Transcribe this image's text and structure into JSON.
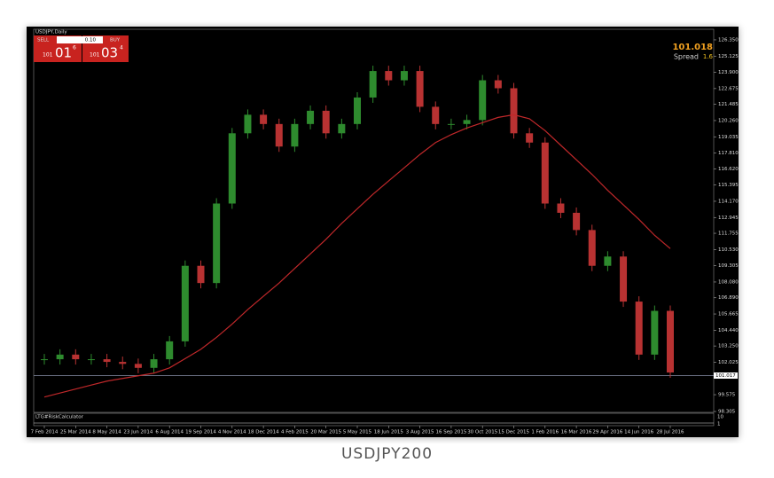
{
  "chart_data": {
    "type": "candlestick",
    "symbol": "USDJPY,Daily",
    "sell_label": "SELL",
    "buy_label": "BUY",
    "lot": "0.10",
    "sell_big": "101",
    "sell_mid": "01",
    "sell_small": "6",
    "buy_big": "101",
    "buy_mid": "03",
    "buy_small": "4",
    "quote": 101.018,
    "spread_label": "Spread",
    "spread": 1.6,
    "current_price": 101.017,
    "indicator_label": "LTG#RiskCalculator",
    "indicator_ticks": [
      "10",
      "1"
    ],
    "caption": "USDJPY200",
    "categories": [
      "7 Feb 2014",
      null,
      "25 Mar 2014",
      null,
      "8 May 2014",
      null,
      "23 Jun 2014",
      null,
      "6 Aug 2014",
      null,
      "19 Sep 2014",
      null,
      "4 Nov 2014",
      null,
      "18 Dec 2014",
      null,
      "4 Feb 2015",
      null,
      "20 Mar 2015",
      null,
      "5 May 2015",
      null,
      "18 Jun 2015",
      null,
      "3 Aug 2015",
      null,
      "16 Sep 2015",
      null,
      "30 Oct 2015",
      null,
      "15 Dec 2015",
      null,
      "1 Feb 2016",
      null,
      "16 Mar 2016",
      null,
      "29 Apr 2016",
      null,
      "14 Jun 2016",
      null,
      "28 Jul 2016"
    ],
    "series": [
      {
        "name": "USDJPY",
        "color": "#2e8b2e",
        "down_color": "#b83232",
        "values": [
          102.25,
          102.6,
          102.25,
          102.25,
          102.05,
          101.9,
          101.6,
          102.25,
          103.6,
          109.3,
          108.0,
          114.0,
          119.3,
          120.7,
          120.0,
          118.3,
          120.0,
          121.0,
          119.3,
          120.0,
          122.0,
          124.0,
          123.3,
          124.0,
          121.3,
          120.0,
          120.0,
          120.3,
          123.3,
          122.7,
          119.3,
          118.6,
          114.0,
          113.3,
          112.0,
          109.3,
          110.0,
          106.6,
          102.6,
          105.9,
          101.25
        ]
      },
      {
        "name": "MA200",
        "color": "#c0282a",
        "values": [
          99.4,
          99.7,
          100.0,
          100.3,
          100.6,
          100.8,
          101.0,
          101.2,
          101.6,
          102.3,
          103.0,
          103.9,
          104.9,
          106.0,
          107.0,
          108.0,
          109.1,
          110.2,
          111.3,
          112.5,
          113.6,
          114.7,
          115.7,
          116.7,
          117.7,
          118.6,
          119.2,
          119.7,
          120.1,
          120.5,
          120.7,
          120.4,
          119.5,
          118.4,
          117.3,
          116.2,
          115.0,
          113.9,
          112.8,
          111.6,
          110.6
        ]
      }
    ],
    "ylim": [
      98.24,
      127.15
    ],
    "yticks": [
      {
        "value": 126.35,
        "label": "126.350"
      },
      125.125,
      {
        "value": 123.9,
        "label": "123.900"
      },
      122.675,
      121.485,
      {
        "value": 120.26,
        "label": "120.260"
      },
      119.035,
      {
        "value": 117.81,
        "label": "117.810"
      },
      {
        "value": 116.62,
        "label": "116.620"
      },
      115.395,
      {
        "value": 114.17,
        "label": "114.170"
      },
      112.945,
      111.755,
      {
        "value": 110.53,
        "label": "110.530"
      },
      109.305,
      {
        "value": 108.08,
        "label": "108.080"
      },
      {
        "value": 106.89,
        "label": "106.890"
      },
      105.665,
      {
        "value": 104.44,
        "label": "104.440"
      },
      {
        "value": 103.25,
        "label": "103.250"
      },
      102.025,
      99.575,
      98.305
    ]
  }
}
